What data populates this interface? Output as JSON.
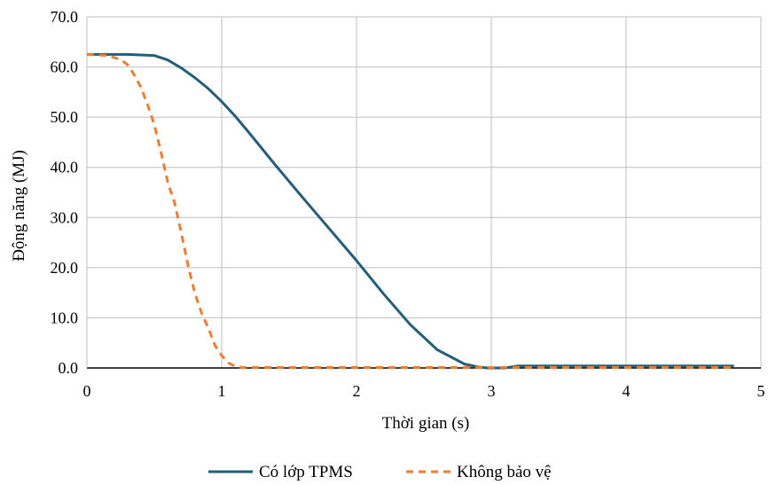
{
  "chart_data": {
    "type": "line",
    "title": "",
    "xlabel": "Thời gian (s)",
    "ylabel": "Động năng (MJ)",
    "xlim": [
      0,
      5
    ],
    "ylim": [
      0,
      70
    ],
    "x_ticks": [
      0,
      1,
      2,
      3,
      4,
      5
    ],
    "y_ticks": [
      0,
      10,
      20,
      30,
      40,
      50,
      60,
      70
    ],
    "x_tick_labels": [
      "0",
      "1",
      "2",
      "3",
      "4",
      "5"
    ],
    "y_tick_labels": [
      "0.0",
      "10.0",
      "20.0",
      "30.0",
      "40.0",
      "50.0",
      "60.0",
      "70.0"
    ],
    "grid": true,
    "legend_position": "bottom",
    "series": [
      {
        "name": "Có lớp TPMS",
        "color": "#215f7a",
        "dash": "solid",
        "x": [
          0,
          0.3,
          0.5,
          0.6,
          0.7,
          0.8,
          0.9,
          1.0,
          1.1,
          1.2,
          1.4,
          1.6,
          1.8,
          2.0,
          2.2,
          2.4,
          2.6,
          2.8,
          2.9,
          2.97,
          3.1,
          3.2,
          3.5,
          4.0,
          4.5,
          4.8
        ],
        "y": [
          62.5,
          62.5,
          62.3,
          61.4,
          59.8,
          57.9,
          55.7,
          53.1,
          50.2,
          47.0,
          40.4,
          34.0,
          27.7,
          21.4,
          14.8,
          8.6,
          3.6,
          0.8,
          0.2,
          0.0,
          0.0,
          0.4,
          0.4,
          0.4,
          0.4,
          0.4
        ]
      },
      {
        "name": "Không bảo vệ",
        "color": "#ed7d31",
        "dash": "dashed",
        "x": [
          0,
          0.15,
          0.25,
          0.3,
          0.35,
          0.4,
          0.45,
          0.5,
          0.55,
          0.6,
          0.65,
          0.7,
          0.75,
          0.8,
          0.85,
          0.9,
          0.95,
          1.0,
          1.05,
          1.1,
          1.15,
          1.2,
          1.5,
          2.0,
          2.5,
          3.0,
          3.5,
          4.0,
          4.5,
          4.8
        ],
        "y": [
          62.5,
          62.3,
          61.5,
          60.5,
          58.5,
          56.0,
          52.5,
          48.5,
          43.0,
          37.0,
          33.0,
          27.0,
          20.5,
          15.0,
          11.0,
          8.0,
          4.5,
          2.5,
          1.0,
          0.3,
          0.1,
          0.1,
          0.1,
          0.1,
          0.1,
          0.1,
          0.1,
          0.1,
          0.1,
          0.1
        ]
      }
    ]
  }
}
